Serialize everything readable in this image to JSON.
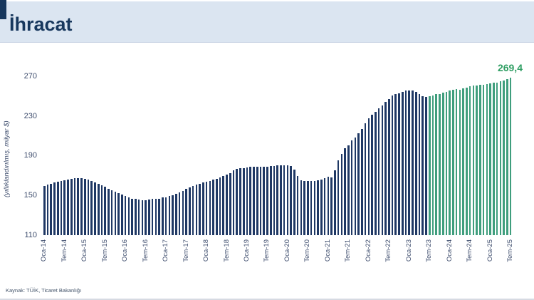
{
  "header": {
    "title": "İhracat",
    "accent_color": "#17375d",
    "background_color": "#dbe5f1"
  },
  "footer": {
    "source": "Kaynak: TÜİK, Ticaret Bakanlığı"
  },
  "chart_data": {
    "type": "bar",
    "title": "İhracat",
    "xlabel": "",
    "ylabel": "(yıllıklandırılmış, milyar $)",
    "ylim": [
      110,
      270
    ],
    "yticks": [
      110,
      150,
      190,
      230,
      270
    ],
    "grid": false,
    "legend": "none",
    "frequency": "monthly",
    "n_bars": 139,
    "tick_every": 6,
    "tick_labels": [
      "Oca-14",
      "Tem-14",
      "Oca-15",
      "Tem-15",
      "Oca-16",
      "Tem-16",
      "Oca-17",
      "Tem-17",
      "Oca-18",
      "Tem-18",
      "Oca-19",
      "Tem-19",
      "Oca-20",
      "Tem-20",
      "Oca-21",
      "Tem-21",
      "Oca-22",
      "Tem-22",
      "Oca-23",
      "Tem-23",
      "Oca-24",
      "Tem-24",
      "Oca-25",
      "Tem-25"
    ],
    "values": [
      160.0,
      161.0,
      162.0,
      163.0,
      164.0,
      165.0,
      165.5,
      166.0,
      167.0,
      168.0,
      168.0,
      167.5,
      167.0,
      166.0,
      165.0,
      163.5,
      162.0,
      160.5,
      159.0,
      157.0,
      155.5,
      154.0,
      152.5,
      151.0,
      149.5,
      148.0,
      147.0,
      146.5,
      146.0,
      145.5,
      145.5,
      146.0,
      146.5,
      146.5,
      147.0,
      148.0,
      148.5,
      149.5,
      150.5,
      152.0,
      153.5,
      155.0,
      156.5,
      158.0,
      159.5,
      161.0,
      162.0,
      163.0,
      164.0,
      165.0,
      166.0,
      167.0,
      168.5,
      170.0,
      171.5,
      173.0,
      175.5,
      177.0,
      177.5,
      178.0,
      178.5,
      179.0,
      179.0,
      179.5,
      179.5,
      179.0,
      179.5,
      180.0,
      180.0,
      180.5,
      180.5,
      180.5,
      180.5,
      180.0,
      176.5,
      169.5,
      165.5,
      164.5,
      165.0,
      164.5,
      164.5,
      165.5,
      166.0,
      168.0,
      169.0,
      168.5,
      175.5,
      185.5,
      192.0,
      198.0,
      200.5,
      205.5,
      209.0,
      213.0,
      217.5,
      223.5,
      228.5,
      232.0,
      234.5,
      238.0,
      241.0,
      244.5,
      247.5,
      251.0,
      253.0,
      253.5,
      255.0,
      256.5,
      256.5,
      256.5,
      254.5,
      252.5,
      250.5,
      249.5,
      250.5,
      251.5,
      252.5,
      253.0,
      254.0,
      255.0,
      256.0,
      257.0,
      257.5,
      257.0,
      258.5,
      259.5,
      260.5,
      261.0,
      261.5,
      262.0,
      262.0,
      262.5,
      263.5,
      264.0,
      264.5,
      265.5,
      266.5,
      268.0,
      269.4
    ],
    "recent_start_index": 114,
    "bar_color_historic": "#1f3864",
    "bar_color_recent": "#3f9e7d",
    "last_value_label": "269,4",
    "annotation_color": "#2f9e63"
  }
}
